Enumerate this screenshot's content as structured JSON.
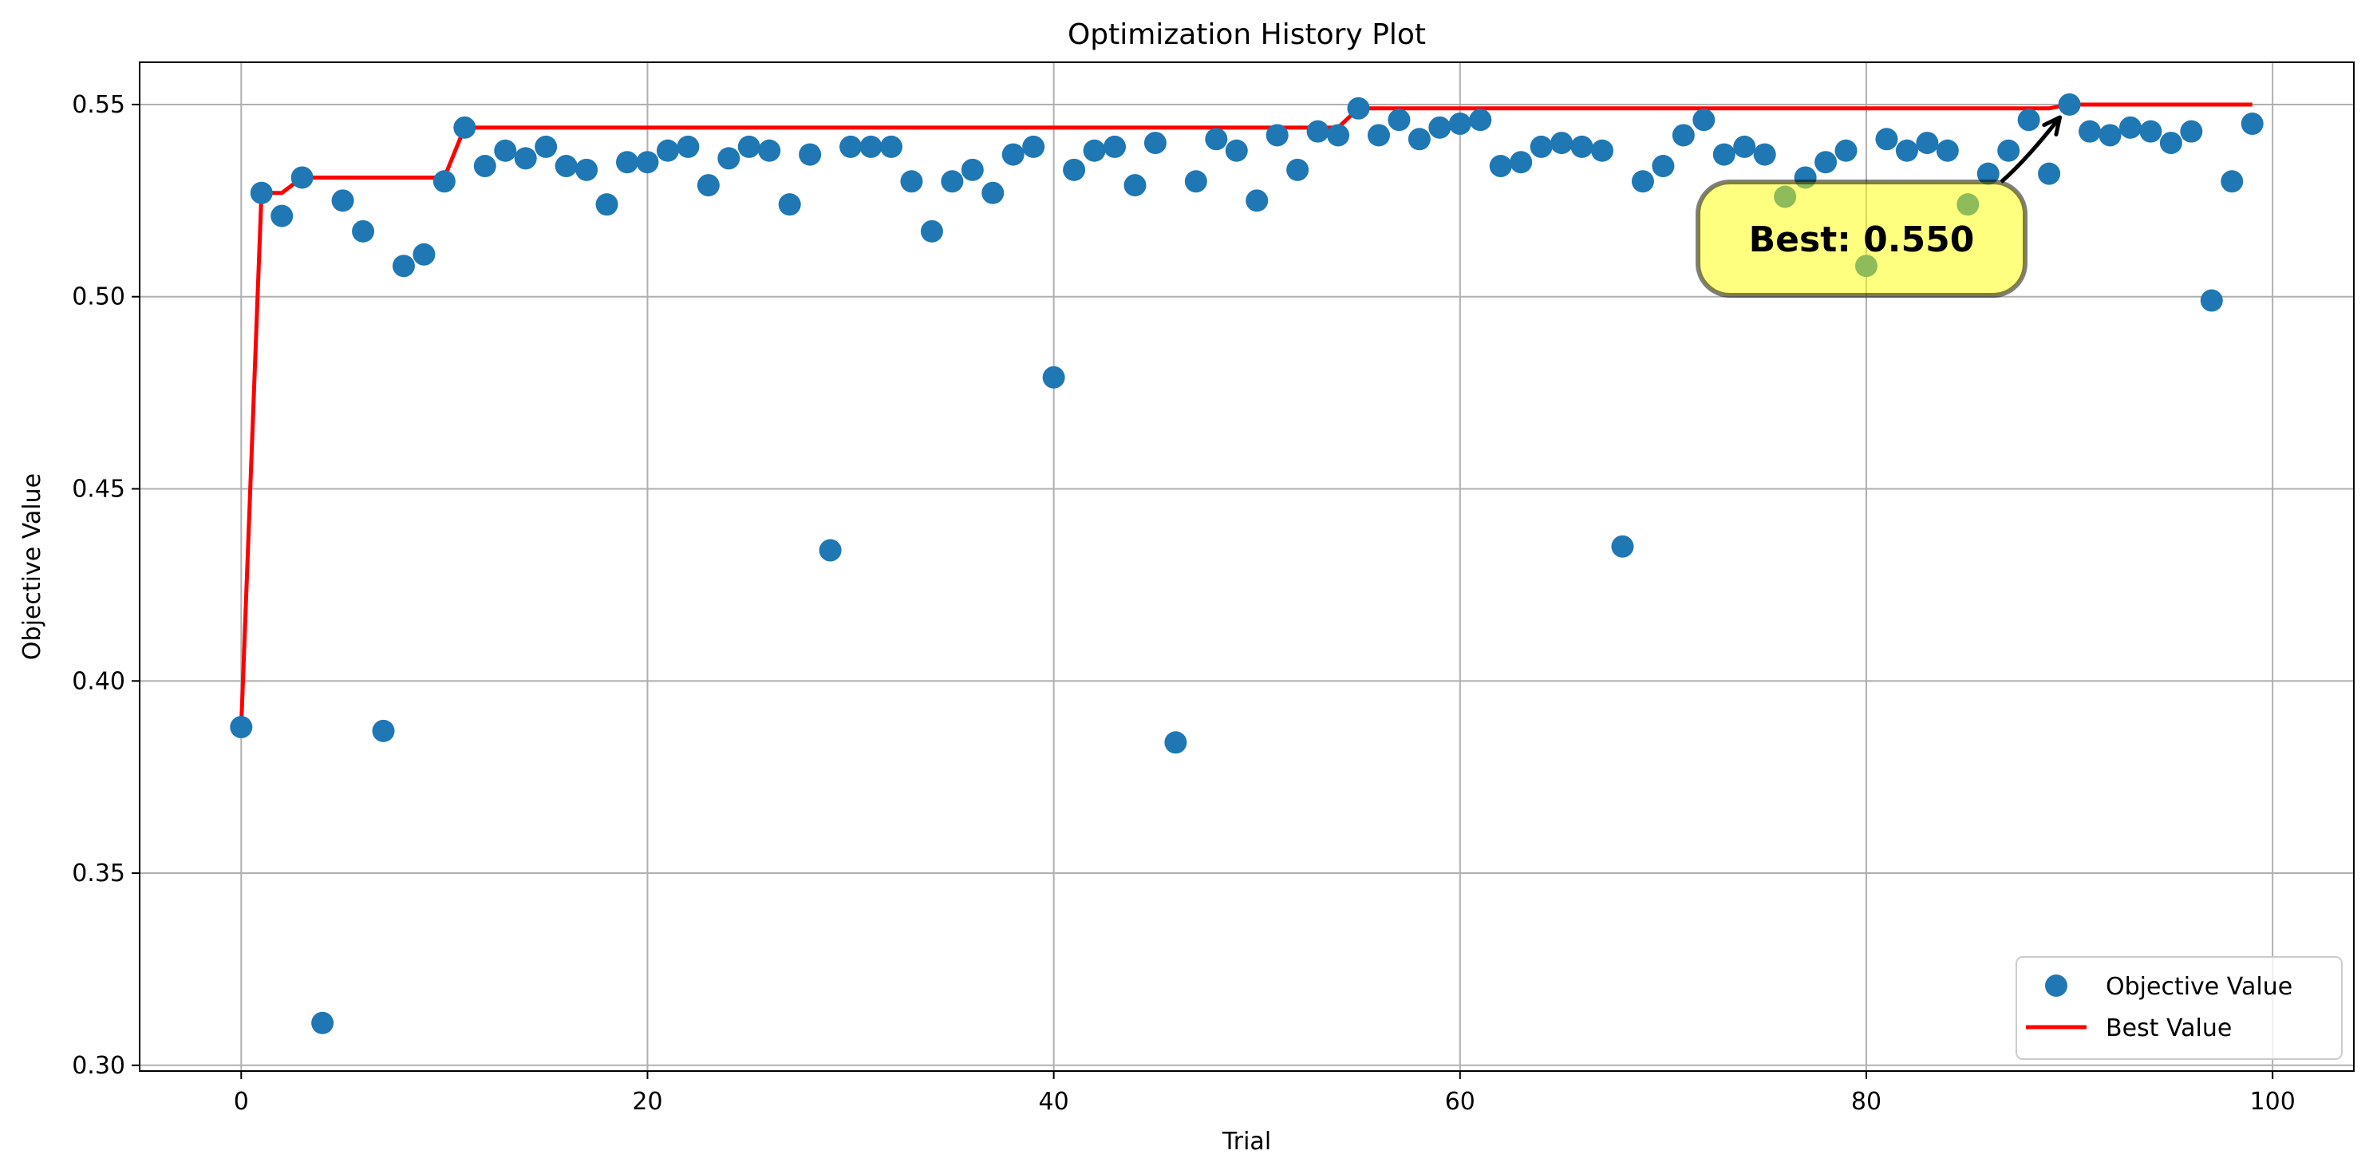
{
  "chart_data": {
    "type": "scatter",
    "title": "Optimization History Plot",
    "xlabel": "Trial",
    "ylabel": "Objective Value",
    "xlim": [
      -5,
      104
    ],
    "ylim": [
      0.2985,
      0.561
    ],
    "xticks": [
      0,
      20,
      40,
      60,
      80,
      100
    ],
    "yticks": [
      0.3,
      0.35,
      0.4,
      0.45,
      0.5,
      0.55
    ],
    "grid": true,
    "legend_position": "lower-right",
    "series": [
      {
        "name": "Objective Value",
        "kind": "scatter",
        "color": "#1f77b4",
        "x": [
          0,
          1,
          2,
          3,
          4,
          5,
          6,
          7,
          8,
          9,
          10,
          11,
          12,
          13,
          14,
          15,
          16,
          17,
          18,
          19,
          20,
          21,
          22,
          23,
          24,
          25,
          26,
          27,
          28,
          29,
          30,
          31,
          32,
          33,
          34,
          35,
          36,
          37,
          38,
          39,
          40,
          41,
          42,
          43,
          44,
          45,
          46,
          47,
          48,
          49,
          50,
          51,
          52,
          53,
          54,
          55,
          56,
          57,
          58,
          59,
          60,
          61,
          62,
          63,
          64,
          65,
          66,
          67,
          68,
          69,
          70,
          71,
          72,
          73,
          74,
          75,
          76,
          77,
          78,
          79,
          80,
          81,
          82,
          83,
          84,
          85,
          86,
          87,
          88,
          89,
          90,
          91,
          92,
          93,
          94,
          95,
          96,
          97,
          98,
          99
        ],
        "y": [
          0.388,
          0.527,
          0.521,
          0.531,
          0.311,
          0.525,
          0.517,
          0.387,
          0.508,
          0.511,
          0.53,
          0.544,
          0.534,
          0.538,
          0.536,
          0.539,
          0.534,
          0.533,
          0.524,
          0.535,
          0.535,
          0.538,
          0.539,
          0.529,
          0.536,
          0.539,
          0.538,
          0.524,
          0.537,
          0.434,
          0.539,
          0.539,
          0.539,
          0.53,
          0.517,
          0.53,
          0.533,
          0.527,
          0.537,
          0.539,
          0.479,
          0.533,
          0.538,
          0.539,
          0.529,
          0.54,
          0.384,
          0.53,
          0.541,
          0.538,
          0.525,
          0.542,
          0.533,
          0.543,
          0.542,
          0.549,
          0.542,
          0.546,
          0.541,
          0.544,
          0.545,
          0.546,
          0.534,
          0.535,
          0.539,
          0.54,
          0.539,
          0.538,
          0.435,
          0.53,
          0.534,
          0.542,
          0.546,
          0.537,
          0.539,
          0.537,
          0.526,
          0.531,
          0.535,
          0.538,
          0.508,
          0.541,
          0.538,
          0.54,
          0.538,
          0.524,
          0.532,
          0.538,
          0.546,
          0.532,
          0.55,
          0.543,
          0.542,
          0.544,
          0.543,
          0.54,
          0.543,
          0.499,
          0.53,
          0.545
        ]
      },
      {
        "name": "Best Value",
        "kind": "line",
        "color": "#ff0000",
        "x": [
          0,
          1,
          2,
          3,
          4,
          5,
          6,
          7,
          8,
          9,
          10,
          11,
          12,
          13,
          14,
          15,
          16,
          17,
          18,
          19,
          20,
          21,
          22,
          23,
          24,
          25,
          26,
          27,
          28,
          29,
          30,
          31,
          32,
          33,
          34,
          35,
          36,
          37,
          38,
          39,
          40,
          41,
          42,
          43,
          44,
          45,
          46,
          47,
          48,
          49,
          50,
          51,
          52,
          53,
          54,
          55,
          56,
          57,
          58,
          59,
          60,
          61,
          62,
          63,
          64,
          65,
          66,
          67,
          68,
          69,
          70,
          71,
          72,
          73,
          74,
          75,
          76,
          77,
          78,
          79,
          80,
          81,
          82,
          83,
          84,
          85,
          86,
          87,
          88,
          89,
          90,
          91,
          92,
          93,
          94,
          95,
          96,
          97,
          98,
          99
        ],
        "y": [
          0.388,
          0.527,
          0.527,
          0.531,
          0.531,
          0.531,
          0.531,
          0.531,
          0.531,
          0.531,
          0.531,
          0.544,
          0.544,
          0.544,
          0.544,
          0.544,
          0.544,
          0.544,
          0.544,
          0.544,
          0.544,
          0.544,
          0.544,
          0.544,
          0.544,
          0.544,
          0.544,
          0.544,
          0.544,
          0.544,
          0.544,
          0.544,
          0.544,
          0.544,
          0.544,
          0.544,
          0.544,
          0.544,
          0.544,
          0.544,
          0.544,
          0.544,
          0.544,
          0.544,
          0.544,
          0.544,
          0.544,
          0.544,
          0.544,
          0.544,
          0.544,
          0.544,
          0.544,
          0.544,
          0.544,
          0.549,
          0.549,
          0.549,
          0.549,
          0.549,
          0.549,
          0.549,
          0.549,
          0.549,
          0.549,
          0.549,
          0.549,
          0.549,
          0.549,
          0.549,
          0.549,
          0.549,
          0.549,
          0.549,
          0.549,
          0.549,
          0.549,
          0.549,
          0.549,
          0.549,
          0.549,
          0.549,
          0.549,
          0.549,
          0.549,
          0.549,
          0.549,
          0.549,
          0.549,
          0.549,
          0.55,
          0.55,
          0.55,
          0.55,
          0.55,
          0.55,
          0.55,
          0.55,
          0.55,
          0.55
        ]
      }
    ],
    "annotation": {
      "text": "Best: 0.550",
      "x": 90,
      "y": 0.55,
      "box_color": "#ffff00",
      "arrow_color": "#000000"
    }
  }
}
